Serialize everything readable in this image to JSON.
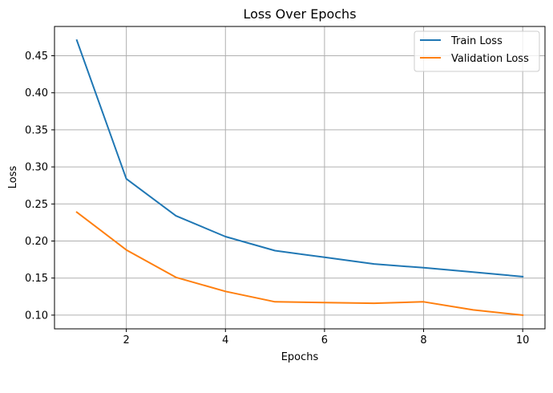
{
  "chart_data": {
    "type": "line",
    "title": "Loss Over Epochs",
    "xlabel": "Epochs",
    "ylabel": "Loss",
    "x": [
      1,
      2,
      3,
      4,
      5,
      6,
      7,
      8,
      9,
      10
    ],
    "series": [
      {
        "name": "Train Loss",
        "color": "#1f77b4",
        "values": [
          0.471,
          0.284,
          0.234,
          0.206,
          0.187,
          0.178,
          0.169,
          0.164,
          0.158,
          0.152
        ]
      },
      {
        "name": "Validation Loss",
        "color": "#ff7f0e",
        "values": [
          0.239,
          0.188,
          0.151,
          0.132,
          0.118,
          0.117,
          0.116,
          0.118,
          0.107,
          0.1
        ]
      }
    ],
    "xlim": [
      0.55,
      10.45
    ],
    "ylim": [
      0.0815,
      0.4895
    ],
    "xticks": [
      2,
      4,
      6,
      8,
      10
    ],
    "xtick_labels": [
      "2",
      "4",
      "6",
      "8",
      "10"
    ],
    "yticks": [
      0.1,
      0.15,
      0.2,
      0.25,
      0.3,
      0.35,
      0.4,
      0.45
    ],
    "ytick_labels": [
      "0.10",
      "0.15",
      "0.20",
      "0.25",
      "0.30",
      "0.35",
      "0.40",
      "0.45"
    ],
    "grid": true,
    "legend_position": "top-right"
  }
}
